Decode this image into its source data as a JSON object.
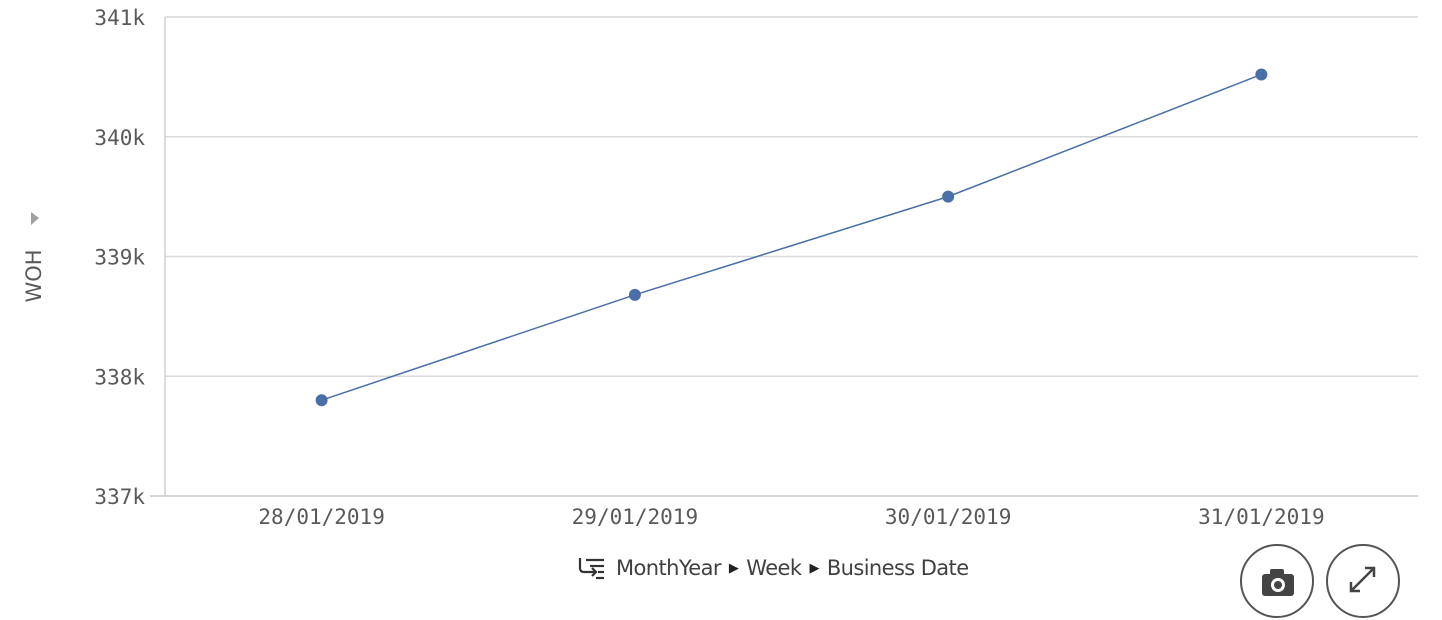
{
  "chart_data": {
    "type": "line",
    "categories": [
      "28/01/2019",
      "29/01/2019",
      "30/01/2019",
      "31/01/2019"
    ],
    "series": [
      {
        "values": [
          337800,
          338680,
          339500,
          340520
        ]
      }
    ],
    "title": "",
    "xlabel": "",
    "ylabel": "WOH",
    "ylim": [
      337000,
      341000
    ],
    "yticks": [
      "341k",
      "340k",
      "339k",
      "338k",
      "337k"
    ],
    "grid": true,
    "color": "#4a6fa8"
  },
  "drill": {
    "levels": [
      "MonthYear",
      "Week",
      "Business Date"
    ],
    "separator": "▶"
  },
  "controls": {
    "snapshot_icon": "camera-icon",
    "expand_icon": "expand-icon",
    "axis_menu_icon": "caret-right-icon"
  }
}
